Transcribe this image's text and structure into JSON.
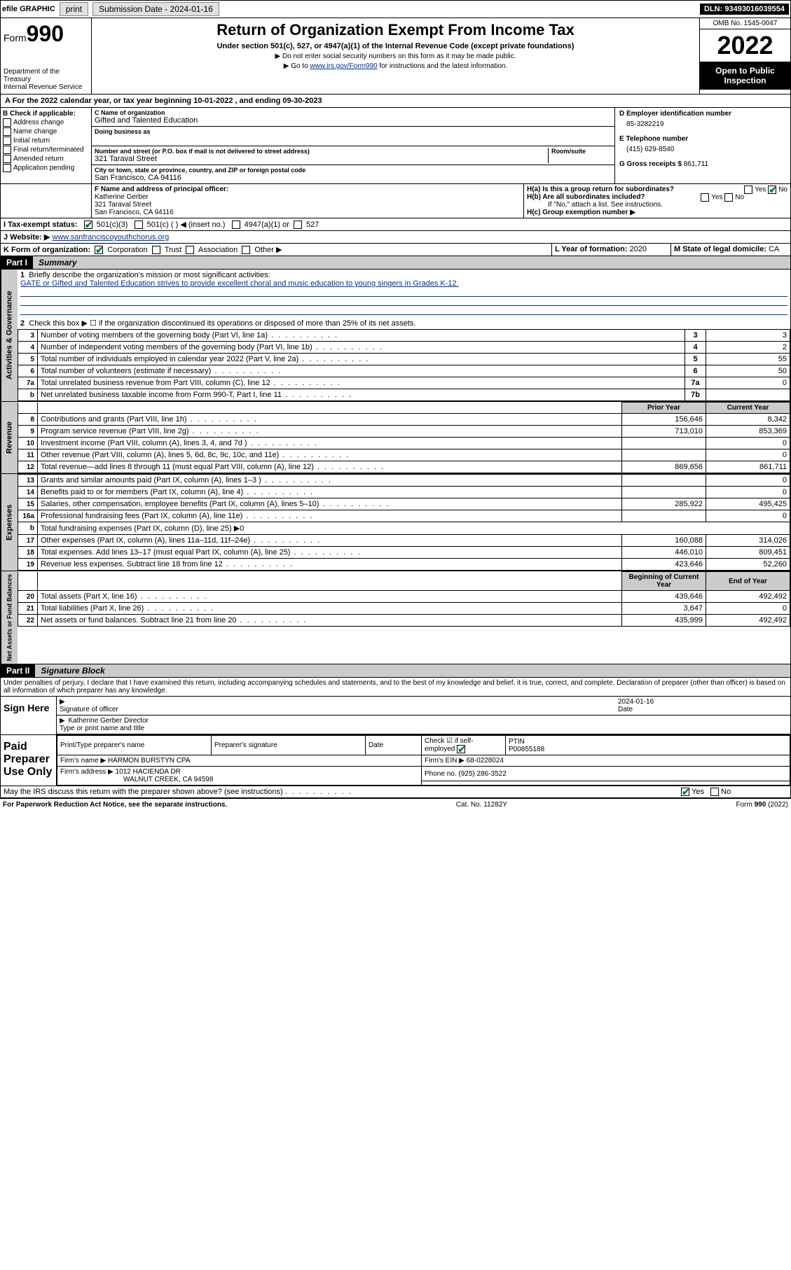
{
  "topbar": {
    "efile": "efile GRAPHIC",
    "print": "print",
    "sub_label": "Submission Date - 2024-01-16",
    "dln": "DLN: 93493016039554"
  },
  "header": {
    "form_prefix": "Form",
    "form_no": "990",
    "dept": "Department of the Treasury",
    "irs": "Internal Revenue Service",
    "title": "Return of Organization Exempt From Income Tax",
    "subtitle": "Under section 501(c), 527, or 4947(a)(1) of the Internal Revenue Code (except private foundations)",
    "note1": "▶ Do not enter social security numbers on this form as it may be made public.",
    "note2_pre": "▶ Go to ",
    "note2_link": "www.irs.gov/Form990",
    "note2_post": " for instructions and the latest information.",
    "omb": "OMB No. 1545-0047",
    "year": "2022",
    "open": "Open to Public Inspection"
  },
  "period": {
    "text_a": "A For the 2022 calendar year, or tax year beginning ",
    "begin": "10-01-2022",
    "text_b": " , and ending ",
    "end": "09-30-2023"
  },
  "blockB": {
    "title": "B Check if applicable:",
    "opts": [
      "Address change",
      "Name change",
      "Initial return",
      "Final return/terminated",
      "Amended return",
      "Application pending"
    ]
  },
  "blockC": {
    "name_lbl": "C Name of organization",
    "name": "Gifted and Talented Education",
    "dba_lbl": "Doing business as",
    "dba": "",
    "addr_lbl": "Number and street (or P.O. box if mail is not delivered to street address)",
    "addr": "321 Taraval Street",
    "room_lbl": "Room/suite",
    "city_lbl": "City or town, state or province, country, and ZIP or foreign postal code",
    "city": "San Francisco, CA  94116"
  },
  "blockD": {
    "lbl": "D Employer identification number",
    "val": "85-3282219"
  },
  "blockE": {
    "lbl": "E Telephone number",
    "val": "(415) 629-8540"
  },
  "blockG": {
    "lbl": "G Gross receipts $",
    "val": "861,711"
  },
  "blockF": {
    "lbl": "F Name and address of principal officer:",
    "name": "Katherine Gerber",
    "addr1": "321 Taraval Street",
    "addr2": "San Francisco, CA  94116"
  },
  "blockH": {
    "a": "H(a)  Is this a group return for subordinates?",
    "a_yes": "Yes",
    "a_no": "No",
    "b": "H(b)  Are all subordinates included?",
    "b_note": "If \"No,\" attach a list. See instructions.",
    "c": "H(c)  Group exemption number ▶"
  },
  "rowI": {
    "lbl": "I   Tax-exempt status:",
    "o1": "501(c)(3)",
    "o2": "501(c) (  ) ◀ (insert no.)",
    "o3": "4947(a)(1) or",
    "o4": "527"
  },
  "rowJ": {
    "lbl": "J   Website: ▶",
    "val": "www.sanfranciscoyouthchorus.org"
  },
  "rowK": {
    "lbl": "K Form of organization:",
    "o1": "Corporation",
    "o2": "Trust",
    "o3": "Association",
    "o4": "Other ▶"
  },
  "rowL": {
    "lbl": "L Year of formation:",
    "val": "2020"
  },
  "rowM": {
    "lbl": "M State of legal domicile:",
    "val": "CA"
  },
  "part1": {
    "num": "Part I",
    "title": "Summary"
  },
  "summary": {
    "l1_lbl": "Briefly describe the organization's mission or most significant activities:",
    "l1_val": "GATE or Gifted and Talented Education strives to provide excellent choral and music education to young singers in Grades K-12.",
    "l2": "Check this box ▶ ☐  if the organization discontinued its operations or disposed of more than 25% of its net assets.",
    "rows_a": [
      {
        "n": "3",
        "d": "Number of voting members of the governing body (Part VI, line 1a)",
        "b": "3",
        "v": "3"
      },
      {
        "n": "4",
        "d": "Number of independent voting members of the governing body (Part VI, line 1b)",
        "b": "4",
        "v": "2"
      },
      {
        "n": "5",
        "d": "Total number of individuals employed in calendar year 2022 (Part V, line 2a)",
        "b": "5",
        "v": "55"
      },
      {
        "n": "6",
        "d": "Total number of volunteers (estimate if necessary)",
        "b": "6",
        "v": "50"
      },
      {
        "n": "7a",
        "d": "Total unrelated business revenue from Part VIII, column (C), line 12",
        "b": "7a",
        "v": "0"
      },
      {
        "n": "b",
        "d": "Net unrelated business taxable income from Form 990-T, Part I, line 11",
        "b": "7b",
        "v": ""
      }
    ],
    "col_prior": "Prior Year",
    "col_curr": "Current Year",
    "rev": [
      {
        "n": "8",
        "d": "Contributions and grants (Part VIII, line 1h)",
        "p": "156,646",
        "c": "8,342"
      },
      {
        "n": "9",
        "d": "Program service revenue (Part VIII, line 2g)",
        "p": "713,010",
        "c": "853,369"
      },
      {
        "n": "10",
        "d": "Investment income (Part VIII, column (A), lines 3, 4, and 7d )",
        "p": "",
        "c": "0"
      },
      {
        "n": "11",
        "d": "Other revenue (Part VIII, column (A), lines 5, 6d, 8c, 9c, 10c, and 11e)",
        "p": "",
        "c": "0"
      },
      {
        "n": "12",
        "d": "Total revenue—add lines 8 through 11 (must equal Part VIII, column (A), line 12)",
        "p": "869,656",
        "c": "861,711"
      }
    ],
    "exp": [
      {
        "n": "13",
        "d": "Grants and similar amounts paid (Part IX, column (A), lines 1–3 )",
        "p": "",
        "c": "0"
      },
      {
        "n": "14",
        "d": "Benefits paid to or for members (Part IX, column (A), line 4)",
        "p": "",
        "c": "0"
      },
      {
        "n": "15",
        "d": "Salaries, other compensation, employee benefits (Part IX, column (A), lines 5–10)",
        "p": "285,922",
        "c": "495,425"
      },
      {
        "n": "16a",
        "d": "Professional fundraising fees (Part IX, column (A), line 11e)",
        "p": "",
        "c": "0"
      },
      {
        "n": "b",
        "d": "Total fundraising expenses (Part IX, column (D), line 25) ▶0",
        "p": null,
        "c": null
      },
      {
        "n": "17",
        "d": "Other expenses (Part IX, column (A), lines 11a–11d, 11f–24e)",
        "p": "160,088",
        "c": "314,026"
      },
      {
        "n": "18",
        "d": "Total expenses. Add lines 13–17 (must equal Part IX, column (A), line 25)",
        "p": "446,010",
        "c": "809,451"
      },
      {
        "n": "19",
        "d": "Revenue less expenses. Subtract line 18 from line 12",
        "p": "423,646",
        "c": "52,260"
      }
    ],
    "col_begin": "Beginning of Current Year",
    "col_end": "End of Year",
    "net": [
      {
        "n": "20",
        "d": "Total assets (Part X, line 16)",
        "p": "439,646",
        "c": "492,492"
      },
      {
        "n": "21",
        "d": "Total liabilities (Part X, line 26)",
        "p": "3,647",
        "c": "0"
      },
      {
        "n": "22",
        "d": "Net assets or fund balances. Subtract line 21 from line 20",
        "p": "435,999",
        "c": "492,492"
      }
    ]
  },
  "vtabs": {
    "gov": "Activities & Governance",
    "rev": "Revenue",
    "exp": "Expenses",
    "net": "Net Assets or Fund Balances"
  },
  "part2": {
    "num": "Part II",
    "title": "Signature Block"
  },
  "sig": {
    "decl": "Under penalties of perjury, I declare that I have examined this return, including accompanying schedules and statements, and to the best of my knowledge and belief, it is true, correct, and complete. Declaration of preparer (other than officer) is based on all information of which preparer has any knowledge.",
    "sign_here": "Sign Here",
    "off_sig": "Signature of officer",
    "date_lbl": "Date",
    "date": "2024-01-16",
    "name_title": "Katherine Gerber  Director",
    "name_lbl": "Type or print name and title"
  },
  "prep": {
    "title": "Paid Preparer Use Only",
    "h1": "Print/Type preparer's name",
    "h2": "Preparer's signature",
    "h3": "Date",
    "h4": "Check ☑ if self-employed",
    "h5_lbl": "PTIN",
    "h5": "P00855188",
    "firm_lbl": "Firm's name  ▶",
    "firm": "HARMON BURSTYN CPA",
    "ein_lbl": "Firm's EIN ▶",
    "ein": "68-0228024",
    "addr_lbl": "Firm's address ▶",
    "addr1": "1012 HACIENDA DR",
    "addr2": "WALNUT CREEK, CA  94598",
    "phone_lbl": "Phone no.",
    "phone": "(925) 286-3522"
  },
  "discuss": {
    "q": "May the IRS discuss this return with the preparer shown above? (see instructions)",
    "yes": "Yes",
    "no": "No"
  },
  "footer": {
    "left": "For Paperwork Reduction Act Notice, see the separate instructions.",
    "mid": "Cat. No. 11282Y",
    "right": "Form 990 (2022)"
  }
}
